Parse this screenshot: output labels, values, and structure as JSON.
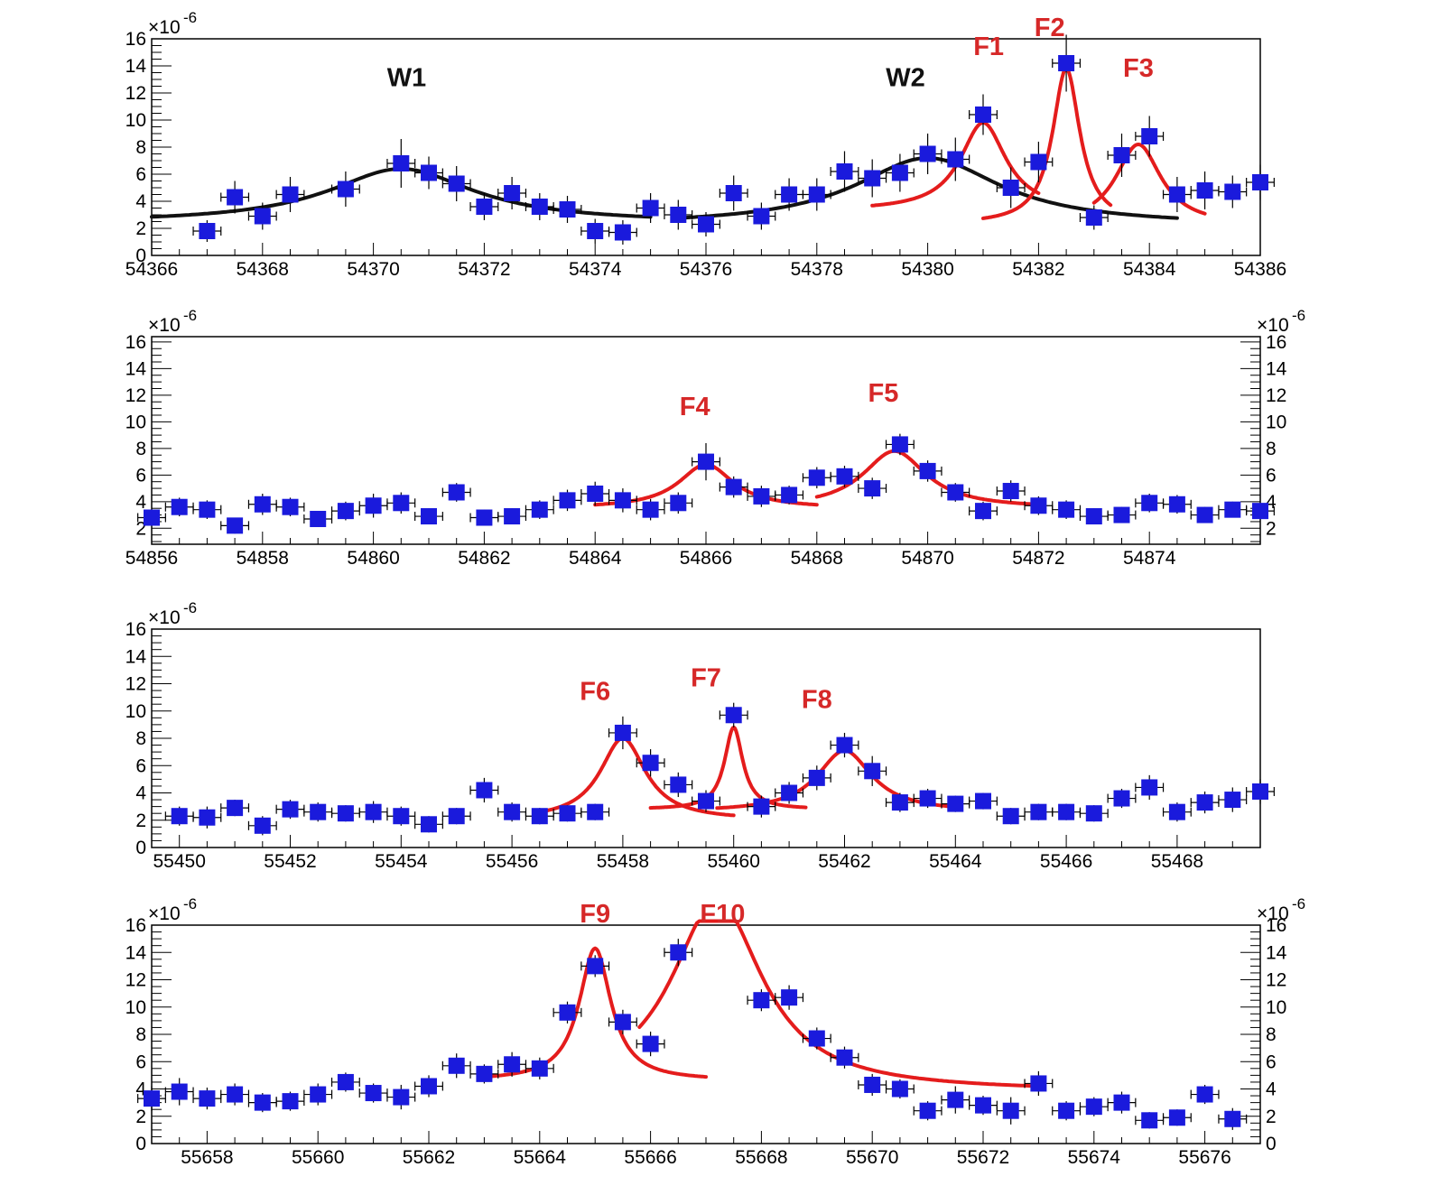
{
  "colors": {
    "marker": "#1a1adc",
    "fit": "#e41c1c",
    "baseline": "#111111",
    "peak_red": "#d62828",
    "peak_black": "#111111",
    "axis": "#000000"
  },
  "chart_data": [
    {
      "type": "scatter",
      "title": "",
      "xlabel": "",
      "ylabel": "",
      "y_multiplier": "×10",
      "y_exponent": "-6",
      "right_axis": false,
      "xlim": [
        54366,
        54386
      ],
      "ylim": [
        0,
        16
      ],
      "x_ticks": [
        "54366",
        "54368",
        "54370",
        "54372",
        "54374",
        "54376",
        "54378",
        "54380",
        "54382",
        "54384",
        "54386"
      ],
      "y_ticks": [
        "0",
        "2",
        "4",
        "6",
        "8",
        "10",
        "12",
        "14",
        "16"
      ],
      "points": [
        [
          54367,
          1.8,
          0.8
        ],
        [
          54367.5,
          4.3,
          1.2
        ],
        [
          54368,
          2.9,
          1
        ],
        [
          54368.5,
          4.5,
          1.3
        ],
        [
          54369.5,
          4.9,
          1.3
        ],
        [
          54370.5,
          6.8,
          1.8
        ],
        [
          54371,
          6.1,
          1.2
        ],
        [
          54371.5,
          5.3,
          1.3
        ],
        [
          54372,
          3.6,
          1
        ],
        [
          54372.5,
          4.6,
          1.2
        ],
        [
          54373,
          3.6,
          1
        ],
        [
          54373.5,
          3.4,
          1
        ],
        [
          54374,
          1.8,
          0.9
        ],
        [
          54374.5,
          1.7,
          0.9
        ],
        [
          54375,
          3.5,
          1.1
        ],
        [
          54375.5,
          3.0,
          1.1
        ],
        [
          54376,
          2.3,
          0.9
        ],
        [
          54376.5,
          4.6,
          1.3
        ],
        [
          54377,
          2.9,
          1
        ],
        [
          54377.5,
          4.5,
          1.2
        ],
        [
          54378,
          4.5,
          1.2
        ],
        [
          54378.5,
          6.2,
          1.5
        ],
        [
          54379,
          5.7,
          1.4
        ],
        [
          54379.5,
          6.1,
          1.4
        ],
        [
          54380,
          7.5,
          1.5
        ],
        [
          54380.5,
          7.1,
          1.6
        ],
        [
          54381,
          10.4,
          1.5
        ],
        [
          54381.5,
          5,
          1.5
        ],
        [
          54382,
          6.9,
          1.5
        ],
        [
          54382.5,
          14.2,
          2.1
        ],
        [
          54383,
          2.8,
          0.9
        ],
        [
          54383.5,
          7.4,
          1.6
        ],
        [
          54384,
          8.8,
          1.5
        ],
        [
          54384.5,
          4.5,
          1.3
        ],
        [
          54385,
          4.8,
          1.4
        ],
        [
          54385.5,
          4.7,
          1.2
        ],
        [
          54386,
          5.4,
          1.3
        ]
      ],
      "fits": [
        {
          "name": "W1",
          "color_key": "baseline",
          "x0": 54370.5,
          "gamma": 1.6,
          "amp": 4.0,
          "bg": 2.4,
          "xmin": 54366,
          "xmax": 54375
        },
        {
          "name": "W2",
          "color_key": "baseline",
          "x0": 54380,
          "gamma": 1.6,
          "amp": 5.0,
          "bg": 2.2,
          "xmin": 54375.5,
          "xmax": 54384.5
        },
        {
          "name": "F1",
          "color_key": "fit",
          "x0": 54381,
          "gamma": 0.5,
          "amp": 6.5,
          "bg": 3.3,
          "xmin": 54379,
          "xmax": 54382
        },
        {
          "name": "F2",
          "color_key": "fit",
          "x0": 54382.5,
          "gamma": 0.3,
          "amp": 11.5,
          "bg": 2.3,
          "xmin": 54381,
          "xmax": 54383.3
        },
        {
          "name": "F3",
          "color_key": "fit",
          "x0": 54383.8,
          "gamma": 0.5,
          "amp": 6.0,
          "bg": 2.2,
          "xmin": 54383,
          "xmax": 54385
        }
      ],
      "labels": [
        {
          "text": "W1",
          "x": 54370.6,
          "y": 12.5,
          "color_key": "peak_black"
        },
        {
          "text": "W2",
          "x": 54379.6,
          "y": 12.5,
          "color_key": "peak_black"
        },
        {
          "text": "F1",
          "x": 54381.1,
          "y": 14.8,
          "color_key": "peak_red"
        },
        {
          "text": "F2",
          "x": 54382.2,
          "y": 16.2,
          "color_key": "peak_red"
        },
        {
          "text": "F3",
          "x": 54383.8,
          "y": 13.2,
          "color_key": "peak_red"
        }
      ]
    },
    {
      "type": "scatter",
      "title": "",
      "xlabel": "",
      "ylabel": "",
      "y_multiplier": "×10",
      "y_exponent": "-6",
      "right_axis": true,
      "xlim": [
        54856,
        54876
      ],
      "ylim": [
        0.8,
        16.4
      ],
      "x_ticks": [
        "54856",
        "54858",
        "54860",
        "54862",
        "54864",
        "54866",
        "54868",
        "54870",
        "54872",
        "54874"
      ],
      "y_ticks": [
        "2",
        "4",
        "6",
        "8",
        "10",
        "12",
        "14",
        "16"
      ],
      "points": [
        [
          54856,
          2.8,
          0.6
        ],
        [
          54856.5,
          3.6,
          0.7
        ],
        [
          54857,
          3.4,
          0.7
        ],
        [
          54857.5,
          2.2,
          0.6
        ],
        [
          54858,
          3.8,
          0.8
        ],
        [
          54858.5,
          3.6,
          0.7
        ],
        [
          54859,
          2.7,
          0.6
        ],
        [
          54859.5,
          3.3,
          0.7
        ],
        [
          54860,
          3.7,
          0.9
        ],
        [
          54860.5,
          3.9,
          0.8
        ],
        [
          54861,
          2.9,
          0.6
        ],
        [
          54861.5,
          4.7,
          0.7
        ],
        [
          54862,
          2.8,
          0.6
        ],
        [
          54862.5,
          2.9,
          0.6
        ],
        [
          54863,
          3.4,
          0.7
        ],
        [
          54863.5,
          4.1,
          0.8
        ],
        [
          54864,
          4.6,
          0.9
        ],
        [
          54864.5,
          4.1,
          0.9
        ],
        [
          54865,
          3.4,
          0.8
        ],
        [
          54865.5,
          3.9,
          0.8
        ],
        [
          54866,
          7.0,
          1.4
        ],
        [
          54866.5,
          5.1,
          0.8
        ],
        [
          54867,
          4.4,
          0.8
        ],
        [
          54867.5,
          4.5,
          0.7
        ],
        [
          54868,
          5.8,
          0.8
        ],
        [
          54868.5,
          5.9,
          0.8
        ],
        [
          54869,
          5.0,
          0.8
        ],
        [
          54869.5,
          8.3,
          0.8
        ],
        [
          54870,
          6.3,
          0.8
        ],
        [
          54870.5,
          4.7,
          0.7
        ],
        [
          54871,
          3.3,
          0.7
        ],
        [
          54871.5,
          4.8,
          0.8
        ],
        [
          54872,
          3.7,
          0.7
        ],
        [
          54872.5,
          3.4,
          0.7
        ],
        [
          54873,
          2.9,
          0.6
        ],
        [
          54873.5,
          3.0,
          0.6
        ],
        [
          54874,
          3.9,
          0.7
        ],
        [
          54874.5,
          3.8,
          0.7
        ],
        [
          54875,
          3.0,
          0.6
        ],
        [
          54875.5,
          3.4,
          0.6
        ],
        [
          54876,
          3.3,
          0.6
        ]
      ],
      "fits": [
        {
          "name": "F4",
          "color_key": "fit",
          "x0": 54866,
          "gamma": 0.6,
          "amp": 3.3,
          "bg": 3.5,
          "xmin": 54864,
          "xmax": 54868
        },
        {
          "name": "F5",
          "color_key": "fit",
          "x0": 54869.4,
          "gamma": 0.7,
          "amp": 4.3,
          "bg": 3.5,
          "xmin": 54868,
          "xmax": 54872
        }
      ],
      "labels": [
        {
          "text": "F4",
          "x": 54865.8,
          "y": 10.5,
          "color_key": "peak_red"
        },
        {
          "text": "F5",
          "x": 54869.2,
          "y": 11.5,
          "color_key": "peak_red"
        }
      ]
    },
    {
      "type": "scatter",
      "title": "",
      "xlabel": "",
      "ylabel": "",
      "y_multiplier": "×10",
      "y_exponent": "-6",
      "right_axis": false,
      "xlim": [
        55449.5,
        55469.5
      ],
      "ylim": [
        0,
        16
      ],
      "x_ticks": [
        "55450",
        "55452",
        "55454",
        "55456",
        "55458",
        "55460",
        "55462",
        "55464",
        "55466",
        "55468"
      ],
      "y_ticks": [
        "0",
        "2",
        "4",
        "6",
        "8",
        "10",
        "12",
        "14",
        "16"
      ],
      "points": [
        [
          55450,
          2.3,
          0.7
        ],
        [
          55450.5,
          2.2,
          0.8
        ],
        [
          55451,
          2.9,
          0.6
        ],
        [
          55451.5,
          1.6,
          0.7
        ],
        [
          55452,
          2.8,
          0.7
        ],
        [
          55452.5,
          2.6,
          0.7
        ],
        [
          55453,
          2.5,
          0.6
        ],
        [
          55453.5,
          2.6,
          0.8
        ],
        [
          55454,
          2.3,
          0.7
        ],
        [
          55454.5,
          1.7,
          0.6
        ],
        [
          55455,
          2.3,
          0.6
        ],
        [
          55455.5,
          4.2,
          0.9
        ],
        [
          55456,
          2.6,
          0.7
        ],
        [
          55456.5,
          2.3,
          0.6
        ],
        [
          55457,
          2.5,
          0.6
        ],
        [
          55457.5,
          2.6,
          0.6
        ],
        [
          55458,
          8.4,
          1.2
        ],
        [
          55458.5,
          6.2,
          1
        ],
        [
          55459,
          4.6,
          0.9
        ],
        [
          55459.5,
          3.4,
          0.8
        ],
        [
          55460,
          9.7,
          0.9
        ],
        [
          55460.5,
          3.0,
          0.8
        ],
        [
          55461,
          4.0,
          0.8
        ],
        [
          55461.5,
          5.1,
          0.9
        ],
        [
          55462,
          7.5,
          0.9
        ],
        [
          55462.5,
          5.6,
          1.1
        ],
        [
          55463,
          3.3,
          0.7
        ],
        [
          55463.5,
          3.6,
          0.7
        ],
        [
          55464,
          3.2,
          0.6
        ],
        [
          55464.5,
          3.4,
          0.6
        ],
        [
          55465,
          2.3,
          0.6
        ],
        [
          55465.5,
          2.6,
          0.6
        ],
        [
          55466,
          2.6,
          0.6
        ],
        [
          55466.5,
          2.5,
          0.6
        ],
        [
          55467,
          3.6,
          0.7
        ],
        [
          55467.5,
          4.4,
          0.9
        ],
        [
          55468,
          2.6,
          0.7
        ],
        [
          55468.5,
          3.3,
          0.8
        ],
        [
          55469,
          3.5,
          0.9
        ],
        [
          55469.5,
          4.1,
          0.9
        ]
      ],
      "fits": [
        {
          "name": "F6",
          "color_key": "fit",
          "x0": 55458,
          "gamma": 0.5,
          "amp": 6.0,
          "bg": 2.0,
          "xmin": 55456.5,
          "xmax": 55460
        },
        {
          "name": "F7",
          "color_key": "fit",
          "x0": 55460,
          "gamma": 0.2,
          "amp": 6.0,
          "bg": 2.8,
          "xmin": 55458.5,
          "xmax": 55461.3
        },
        {
          "name": "F8",
          "color_key": "fit",
          "x0": 55462,
          "gamma": 0.6,
          "amp": 4.5,
          "bg": 2.6,
          "xmin": 55459.7,
          "xmax": 55464
        }
      ],
      "labels": [
        {
          "text": "F6",
          "x": 55457.5,
          "y": 10.8,
          "color_key": "peak_red"
        },
        {
          "text": "F7",
          "x": 55459.5,
          "y": 11.8,
          "color_key": "peak_red"
        },
        {
          "text": "F8",
          "x": 55461.5,
          "y": 10.2,
          "color_key": "peak_red"
        }
      ]
    },
    {
      "type": "scatter",
      "title": "",
      "xlabel": "",
      "ylabel": "",
      "y_multiplier": "×10",
      "y_exponent": "-6",
      "right_axis": true,
      "xlim": [
        55657,
        55677
      ],
      "ylim": [
        0,
        16
      ],
      "x_ticks": [
        "55658",
        "55660",
        "55662",
        "55664",
        "55666",
        "55668",
        "55670",
        "55672",
        "55674",
        "55676"
      ],
      "y_ticks": [
        "0",
        "2",
        "4",
        "6",
        "8",
        "10",
        "12",
        "14",
        "16"
      ],
      "points": [
        [
          55657,
          3.3,
          0.9
        ],
        [
          55657.5,
          3.8,
          1
        ],
        [
          55658,
          3.3,
          0.8
        ],
        [
          55658.5,
          3.6,
          0.8
        ],
        [
          55659,
          3.0,
          0.7
        ],
        [
          55659.5,
          3.1,
          0.7
        ],
        [
          55660,
          3.6,
          0.8
        ],
        [
          55660.5,
          4.5,
          0.7
        ],
        [
          55661,
          3.7,
          0.7
        ],
        [
          55661.5,
          3.4,
          0.9
        ],
        [
          55662,
          4.2,
          0.8
        ],
        [
          55662.5,
          5.7,
          0.9
        ],
        [
          55663,
          5.1,
          0.7
        ],
        [
          55663.5,
          5.8,
          0.9
        ],
        [
          55664,
          5.5,
          0.8
        ],
        [
          55664.5,
          9.6,
          0.8
        ],
        [
          55665,
          13.0,
          0.8
        ],
        [
          55665.5,
          8.9,
          0.9
        ],
        [
          55666,
          7.3,
          0.9
        ],
        [
          55666.5,
          14.0,
          1
        ],
        [
          55668,
          10.5,
          0.8
        ],
        [
          55668.5,
          10.7,
          0.9
        ],
        [
          55669,
          7.7,
          0.8
        ],
        [
          55669.5,
          6.3,
          0.8
        ],
        [
          55670,
          4.3,
          0.8
        ],
        [
          55670.5,
          4.0,
          0.7
        ],
        [
          55671,
          2.4,
          0.7
        ],
        [
          55671.5,
          3.2,
          1
        ],
        [
          55672,
          2.8,
          0.7
        ],
        [
          55672.5,
          2.4,
          1
        ],
        [
          55673,
          4.4,
          0.9
        ],
        [
          55673.5,
          2.4,
          0.7
        ],
        [
          55674,
          2.7,
          0.7
        ],
        [
          55674.5,
          3.0,
          0.8
        ],
        [
          55675,
          1.7,
          0.6
        ],
        [
          55675.5,
          1.9,
          0.6
        ],
        [
          55676,
          3.6,
          0.7
        ],
        [
          55676.5,
          1.8,
          0.8
        ]
      ],
      "fits": [
        {
          "name": "F9",
          "color_key": "fit",
          "x0": 55665,
          "gamma": 0.35,
          "amp": 9.7,
          "bg": 4.6,
          "xmin": 55663,
          "xmax": 55667
        },
        {
          "name": "F10",
          "color_key": "fit",
          "x0": 55667.2,
          "gamma": 1.0,
          "amp": 14,
          "bg": 3.8,
          "xmin": 55665.8,
          "xmax": 55673
        }
      ],
      "labels": [
        {
          "text": "F9",
          "x": 55665,
          "y": 16.2,
          "color_key": "peak_red"
        },
        {
          "text": "F10",
          "x": 55667.3,
          "y": 16.2,
          "color_key": "peak_red"
        }
      ]
    }
  ]
}
